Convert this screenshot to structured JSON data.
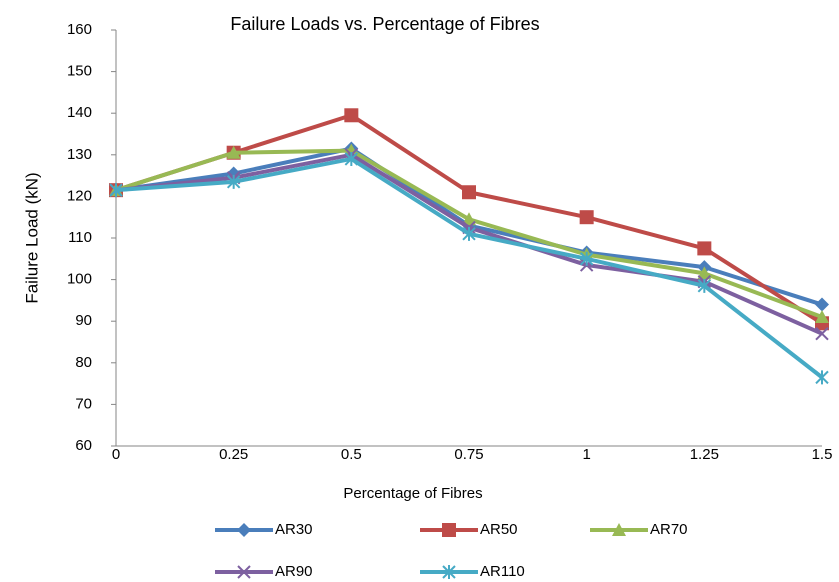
{
  "chart_data": {
    "type": "line",
    "title": "Failure Loads vs. Percentage of Fibres",
    "x_label": "Percentage of Fibres",
    "y_label": "Failure Load (kN)",
    "categories": [
      "0",
      "0.25",
      "0.5",
      "0.75",
      "1",
      "1.25",
      "1.5"
    ],
    "series": [
      {
        "name": "AR30",
        "color": "#4a7ebb",
        "marker": "diamond",
        "values": [
          121.5,
          125.5,
          131.5,
          113,
          106.5,
          103,
          94
        ]
      },
      {
        "name": "AR50",
        "color": "#be4b48",
        "marker": "square",
        "values": [
          121.5,
          130.5,
          139.5,
          121,
          115,
          107.5,
          89.5
        ]
      },
      {
        "name": "AR70",
        "color": "#98b954",
        "marker": "triangle",
        "values": [
          121.5,
          130.5,
          131,
          114.5,
          106,
          101.5,
          91
        ]
      },
      {
        "name": "AR90",
        "color": "#7d60a0",
        "marker": "x",
        "values": [
          121.5,
          124.5,
          130,
          112.5,
          103.5,
          99.5,
          87
        ]
      },
      {
        "name": "AR110",
        "color": "#46aac5",
        "marker": "star",
        "values": [
          121.5,
          123.5,
          129,
          111,
          105,
          98.5,
          76.5
        ]
      }
    ],
    "ylim": [
      60,
      160
    ],
    "yticks": [
      60,
      70,
      80,
      90,
      100,
      110,
      120,
      130,
      140,
      150,
      160
    ],
    "grid": false,
    "legend": "bottom"
  }
}
